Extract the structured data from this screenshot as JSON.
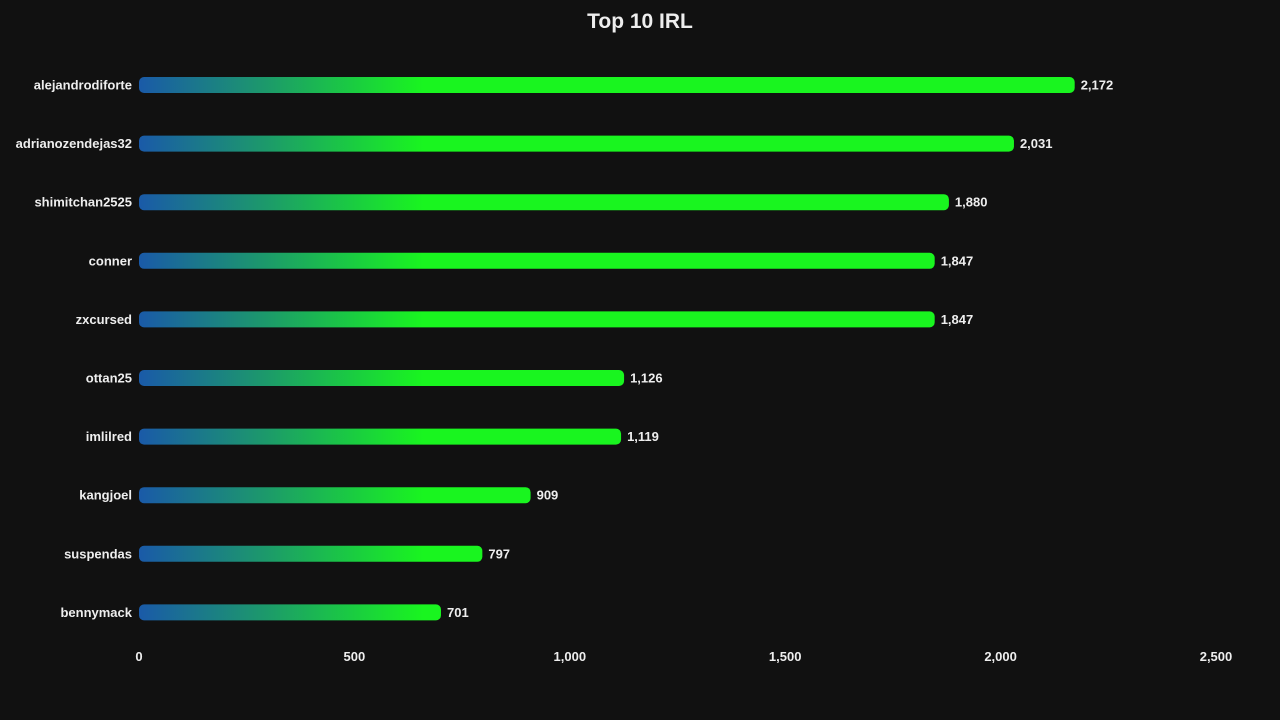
{
  "chart_data": {
    "type": "bar",
    "orientation": "horizontal",
    "title": "Top 10 IRL",
    "xlabel": "",
    "ylabel": "",
    "categories": [
      "alejandrodiforte",
      "adrianozendejas32",
      "shimitchan2525",
      "conner",
      "zxcursed",
      "ottan25",
      "imlilred",
      "kangjoel",
      "suspendas",
      "bennymack"
    ],
    "values": [
      2172,
      2031,
      1880,
      1847,
      1847,
      1126,
      1119,
      909,
      797,
      701
    ],
    "value_labels": [
      "2,172",
      "2,031",
      "1,880",
      "1,847",
      "1,847",
      "1,126",
      "1,119",
      "909",
      "797",
      "701"
    ],
    "xlim": [
      0,
      2500
    ],
    "x_ticks": [
      0,
      500,
      1000,
      1500,
      2000,
      2500
    ],
    "x_tick_labels": [
      "0",
      "500",
      "1,000",
      "1,500",
      "2,000",
      "2,500"
    ],
    "grid": false,
    "legend": "none",
    "colors": {
      "background": "#111111",
      "text": "#eeeeee",
      "gradient_start": "#1a5aa8",
      "gradient_end": "#19f51f"
    }
  }
}
